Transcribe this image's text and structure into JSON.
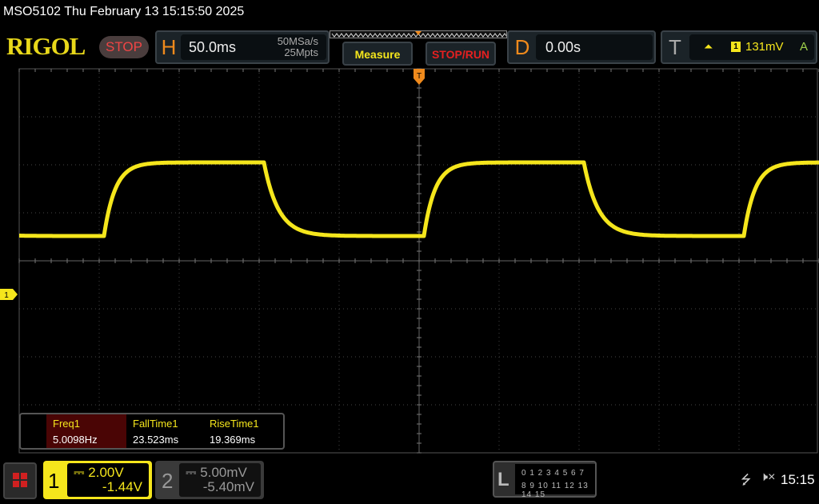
{
  "title_bar": "MSO5102  Thu February 13 15:15:50 2025",
  "logo": "RIGOL",
  "run_state": "STOP",
  "horizontal": {
    "letter": "H",
    "scale": "50.0ms",
    "sample_rate": "50MSa/s",
    "memory_depth": "25Mpts"
  },
  "buttons": {
    "measure": "Measure",
    "stop_run": "STOP/RUN"
  },
  "delay": {
    "letter": "D",
    "value": "0.00s"
  },
  "trigger": {
    "letter": "T",
    "slope_icon": "rising-edge-icon",
    "channel": "1",
    "level": "131mV",
    "mode": "A"
  },
  "trigger_position_marker": "T",
  "ch1_marker": "1",
  "measurements": [
    {
      "label": "Freq1",
      "value": "5.0098Hz"
    },
    {
      "label": "FallTime1",
      "value": "23.523ms"
    },
    {
      "label": "RiseTime1",
      "value": "19.369ms"
    }
  ],
  "channels": [
    {
      "num": "1",
      "coupling_icon": "dc-coupling-icon",
      "scale": "2.00V",
      "offset": "-1.44V",
      "color": "#f5e61c",
      "active": true
    },
    {
      "num": "2",
      "coupling_icon": "dc-coupling-icon",
      "scale": "5.00mV",
      "offset": "-5.40mV",
      "color": "#999999",
      "active": false
    }
  ],
  "logic": {
    "letter": "L",
    "row1": "0 1 2 3  4 5 6 7",
    "row2": "8 9 10 11 12 13 14 15"
  },
  "status": {
    "usb_icon": "usb-icon",
    "sound_icon": "mute-icon",
    "time": "15:15"
  },
  "colors": {
    "trace": "#f5e61c",
    "accent": "#f08a1c",
    "stop": "#e52020"
  }
}
